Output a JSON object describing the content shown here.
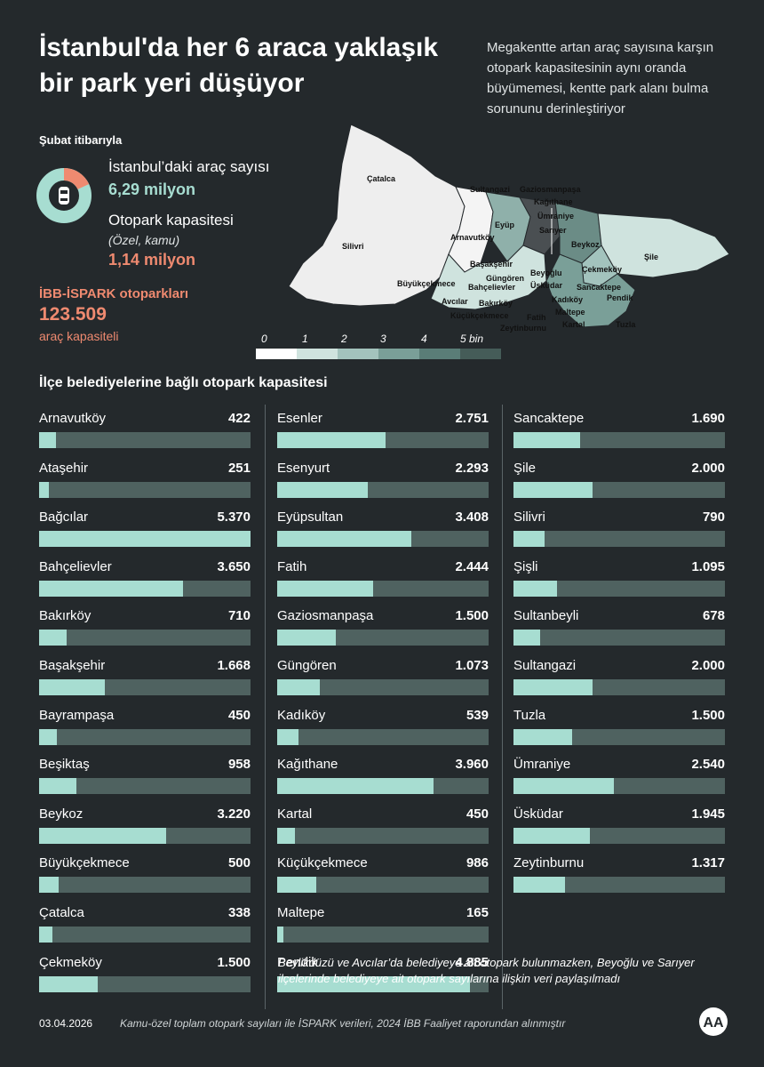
{
  "header": {
    "title": "İstanbul'da her 6 araca yaklaşık bir park yeri düşüyor",
    "intro": "Megakentte artan araç sayısına karşın otopark kapasitesinin aynı oranda büyümemesi, kentte park alanı bulma sorununu derinleştiriyor"
  },
  "stats": {
    "as_of": "Şubat itibarıyla",
    "vehicles_label": "İstanbul’daki araç sayısı",
    "vehicles_value": "6,29 milyon",
    "parking_label": "Otopark kapasitesi",
    "parking_note": "(Özel, kamu)",
    "parking_value": "1,14 milyon",
    "ispark_label": "İBB-İSPARK otoparkları",
    "ispark_value": "123.509",
    "ispark_unit": "araç kapasiteli",
    "donut_parking_fraction": 0.181,
    "icon": "car-icon"
  },
  "map": {
    "districts": [
      "Çatalca",
      "Silivri",
      "Sultangazi",
      "Gaziosmanpaşa",
      "Kağıthane",
      "Ümraniye",
      "Arnavutköy",
      "Eyüp",
      "Sarıyer",
      "Beykoz",
      "Şile",
      "Çekmeköy",
      "Başakşehir",
      "Büyükçekmece",
      "Güngören",
      "Bahçelievler",
      "Beyoğlu",
      "Üsküdar",
      "Sancaktepe",
      "Avcılar",
      "Bakırköy",
      "Kadıköy",
      "Pendik",
      "Küçükçekmece",
      "Fatih",
      "Maltepe",
      "Zeytinburnu",
      "Kartal",
      "Tuzla"
    ],
    "legend_ticks": [
      "0",
      "1",
      "2",
      "3",
      "4",
      "5 bin"
    ],
    "legend_colors": [
      "#ffffff",
      "#cfe3de",
      "#a3c3bd",
      "#7a9f98",
      "#5a7d77",
      "#455c58"
    ]
  },
  "chart_data": {
    "type": "bar",
    "title": "İlçe belediyelerine bağlı otopark kapasitesi",
    "xlim": [
      0,
      5370
    ],
    "categories": [
      "Arnavutköy",
      "Ataşehir",
      "Bağcılar",
      "Bahçelievler",
      "Bakırköy",
      "Başakşehir",
      "Bayrampaşa",
      "Beşiktaş",
      "Beykoz",
      "Büyükçekmece",
      "Çatalca",
      "Çekmeköy",
      "Esenler",
      "Esenyurt",
      "Eyüpsultan",
      "Fatih",
      "Gaziosmanpaşa",
      "Güngören",
      "Kadıköy",
      "Kağıthane",
      "Kartal",
      "Küçükçekmece",
      "Maltepe",
      "Pendik",
      "Sancaktepe",
      "Şile",
      "Silivri",
      "Şişli",
      "Sultanbeyli",
      "Sultangazi",
      "Tuzla",
      "Ümraniye",
      "Üsküdar",
      "Zeytinburnu"
    ],
    "values": [
      422,
      251,
      5370,
      3650,
      710,
      1668,
      450,
      958,
      3220,
      500,
      338,
      1500,
      2751,
      2293,
      3408,
      2444,
      1500,
      1073,
      539,
      3960,
      450,
      986,
      165,
      4885,
      1690,
      2000,
      790,
      1095,
      678,
      2000,
      1500,
      2540,
      1945,
      1317
    ],
    "value_labels": [
      "422",
      "251",
      "5.370",
      "3.650",
      "710",
      "1.668",
      "450",
      "958",
      "3.220",
      "500",
      "338",
      "1.500",
      "2.751",
      "2.293",
      "3.408",
      "2.444",
      "1.500",
      "1.073",
      "539",
      "3.960",
      "450",
      "986",
      "165",
      "4.885",
      "1.690",
      "2.000",
      "790",
      "1.095",
      "678",
      "2.000",
      "1.500",
      "2.540",
      "1.945",
      "1.317"
    ]
  },
  "note": "Beylikdüzü ve Avcılar’da belediyeye ait otopark bulunmazken, Beyoğlu ve Sarıyer ilçelerinde belediyeye ait otopark sayılarına ilişkin veri paylaşılmadı",
  "footer": {
    "date": "03.04.2026",
    "source": "Kamu-özel toplam otopark sayıları ile İSPARK verileri, 2024 İBB Faaliyet raporundan alınmıştır",
    "logo_text": "AA",
    "logo_icon": "aa-logo-icon"
  },
  "colors": {
    "background": "#24292c",
    "teal": "#a7ddd1",
    "salmon": "#ef8a70",
    "track": "#4f6260"
  }
}
